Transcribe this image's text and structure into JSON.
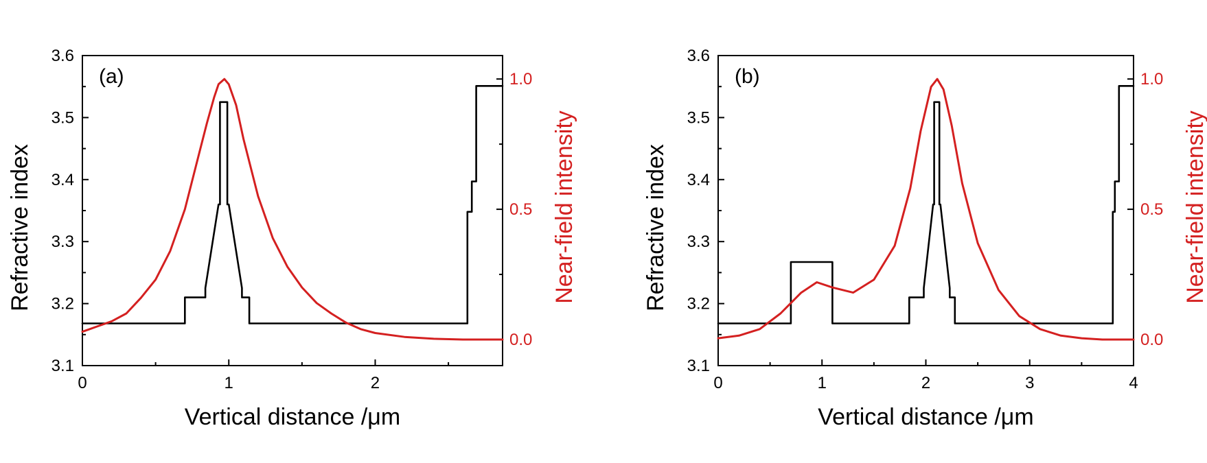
{
  "chart_data": [
    {
      "type": "line",
      "panel_label": "(a)",
      "xlabel": "Vertical distance /μm",
      "ylabel": "Refractive index",
      "y2label": "Near-field intensity",
      "xlim": [
        0,
        2.87
      ],
      "ylim": [
        3.1,
        3.6
      ],
      "y2lim": [
        -0.1,
        1.09
      ],
      "x_ticks": [
        0,
        1,
        2
      ],
      "x_tick_labels": [
        "0",
        "1",
        "2"
      ],
      "y_ticks": [
        3.1,
        3.2,
        3.3,
        3.4,
        3.5,
        3.6
      ],
      "y_tick_labels": [
        "3.1",
        "3.2",
        "3.3",
        "3.4",
        "3.5",
        "3.6"
      ],
      "y2_ticks": [
        0,
        0.5,
        1
      ],
      "y2_tick_labels": [
        "0.0",
        "0.5",
        "1.0"
      ],
      "colors": {
        "index": "#000000",
        "intensity": "#d42020"
      },
      "grid": false,
      "series": [
        {
          "axis": "left",
          "x": [
            0,
            0.7,
            0.7,
            0.84,
            0.84,
            0.93,
            0.94,
            0.94,
            0.99,
            0.99,
            1.0,
            1.09,
            1.09,
            1.14,
            1.14,
            2.63,
            2.63,
            2.66,
            2.66,
            2.69,
            2.69,
            2.87
          ],
          "y": [
            3.168,
            3.168,
            3.21,
            3.21,
            3.225,
            3.36,
            3.36,
            3.525,
            3.525,
            3.36,
            3.36,
            3.225,
            3.21,
            3.21,
            3.168,
            3.168,
            3.348,
            3.348,
            3.397,
            3.397,
            3.551,
            3.551
          ]
        },
        {
          "axis": "right",
          "x": [
            0,
            0.1,
            0.2,
            0.3,
            0.4,
            0.5,
            0.6,
            0.7,
            0.8,
            0.85,
            0.9,
            0.93,
            0.97,
            1.0,
            1.05,
            1.1,
            1.2,
            1.3,
            1.4,
            1.5,
            1.6,
            1.7,
            1.8,
            1.9,
            2.0,
            2.2,
            2.4,
            2.6,
            2.87
          ],
          "y": [
            0.03,
            0.05,
            0.07,
            0.1,
            0.16,
            0.23,
            0.34,
            0.5,
            0.72,
            0.83,
            0.93,
            0.98,
            1.0,
            0.98,
            0.9,
            0.77,
            0.55,
            0.39,
            0.28,
            0.2,
            0.14,
            0.1,
            0.065,
            0.04,
            0.025,
            0.01,
            0.003,
            0.0,
            0.0
          ]
        }
      ]
    },
    {
      "type": "line",
      "panel_label": "(b)",
      "xlabel": "Vertical distance /μm",
      "ylabel": "Refractive index",
      "y2label": "Near-field intensity",
      "xlim": [
        0,
        4
      ],
      "ylim": [
        3.1,
        3.6
      ],
      "y2lim": [
        -0.1,
        1.09
      ],
      "x_ticks": [
        0,
        1,
        2,
        3,
        4
      ],
      "x_tick_labels": [
        "0",
        "1",
        "2",
        "3",
        "4"
      ],
      "y_ticks": [
        3.1,
        3.2,
        3.3,
        3.4,
        3.5,
        3.6
      ],
      "y_tick_labels": [
        "3.1",
        "3.2",
        "3.3",
        "3.4",
        "3.5",
        "3.6"
      ],
      "y2_ticks": [
        0,
        0.5,
        1
      ],
      "y2_tick_labels": [
        "0.0",
        "0.5",
        "1.0"
      ],
      "colors": {
        "index": "#000000",
        "intensity": "#d42020"
      },
      "grid": false,
      "series": [
        {
          "axis": "left",
          "x": [
            0,
            0.7,
            0.7,
            1.1,
            1.1,
            1.84,
            1.84,
            1.98,
            1.98,
            2.07,
            2.08,
            2.08,
            2.13,
            2.13,
            2.14,
            2.23,
            2.23,
            2.28,
            2.28,
            3.8,
            3.8,
            3.82,
            3.82,
            3.86,
            3.86,
            4.0
          ],
          "y": [
            3.168,
            3.168,
            3.267,
            3.267,
            3.168,
            3.168,
            3.21,
            3.21,
            3.225,
            3.36,
            3.36,
            3.525,
            3.525,
            3.36,
            3.36,
            3.225,
            3.21,
            3.21,
            3.168,
            3.168,
            3.348,
            3.348,
            3.397,
            3.397,
            3.551,
            3.551
          ]
        },
        {
          "axis": "right",
          "x": [
            0,
            0.2,
            0.4,
            0.6,
            0.8,
            0.95,
            1.1,
            1.3,
            1.5,
            1.7,
            1.85,
            1.95,
            2.05,
            2.11,
            2.17,
            2.25,
            2.35,
            2.5,
            2.7,
            2.9,
            3.1,
            3.3,
            3.5,
            3.7,
            3.85,
            4.0
          ],
          "y": [
            0.005,
            0.015,
            0.04,
            0.1,
            0.18,
            0.22,
            0.2,
            0.18,
            0.23,
            0.36,
            0.58,
            0.8,
            0.97,
            1.0,
            0.96,
            0.82,
            0.6,
            0.37,
            0.19,
            0.09,
            0.04,
            0.015,
            0.005,
            0.0,
            0.0,
            0.0
          ]
        }
      ]
    }
  ]
}
